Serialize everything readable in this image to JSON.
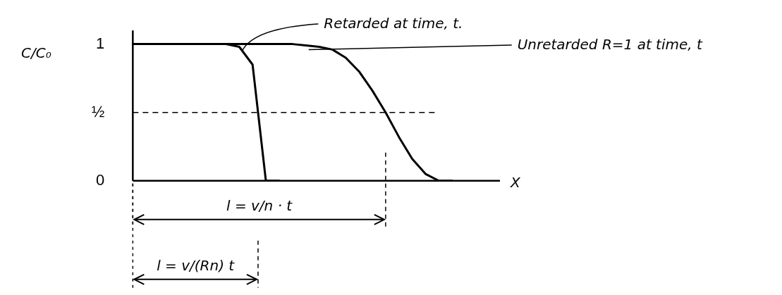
{
  "chart_data": {
    "type": "line",
    "ylabel": "C/C₀",
    "xlabel": "X",
    "categories": [
      null,
      null,
      null,
      null,
      null,
      null,
      null,
      null,
      null,
      null,
      null,
      null,
      null,
      null,
      null,
      null,
      null,
      null,
      null,
      null,
      null,
      null,
      null,
      null,
      null,
      null,
      null
    ],
    "series": [
      {
        "name": "Retarded at time, t.",
        "color": "#000000",
        "values": [
          1,
          1,
          1,
          1,
          1,
          1,
          1,
          1,
          0.98,
          0.85,
          0,
          0,
          null,
          null,
          null,
          null,
          null,
          null,
          null,
          null,
          null,
          null,
          null,
          null,
          null,
          null,
          null
        ]
      },
      {
        "name": "Unretarded R=1 at time, t",
        "color": "#000000",
        "values": [
          1,
          1,
          1,
          1,
          1,
          1,
          1,
          1,
          1,
          1,
          1,
          1,
          1,
          0.99,
          0.98,
          0.96,
          0.9,
          0.8,
          0.66,
          0.5,
          0.32,
          0.16,
          0.05,
          0,
          0,
          null,
          null
        ]
      }
    ],
    "ylim": [
      0,
      1.1
    ],
    "yticks": [
      {
        "value": 0,
        "label": "0"
      },
      {
        "value": 0.5,
        "label": "½"
      },
      {
        "value": 1,
        "label": "1"
      }
    ],
    "ref_lines": [
      {
        "axis": "y",
        "value": 0.5,
        "line_style": "dashed",
        "color": "#000000"
      }
    ],
    "annotations": [
      "l = v/n · t",
      "l = v/(Rn) t"
    ],
    "grid": false,
    "legend": false,
    "marker": "none",
    "line_style": "solid",
    "tick_labels": "y"
  }
}
